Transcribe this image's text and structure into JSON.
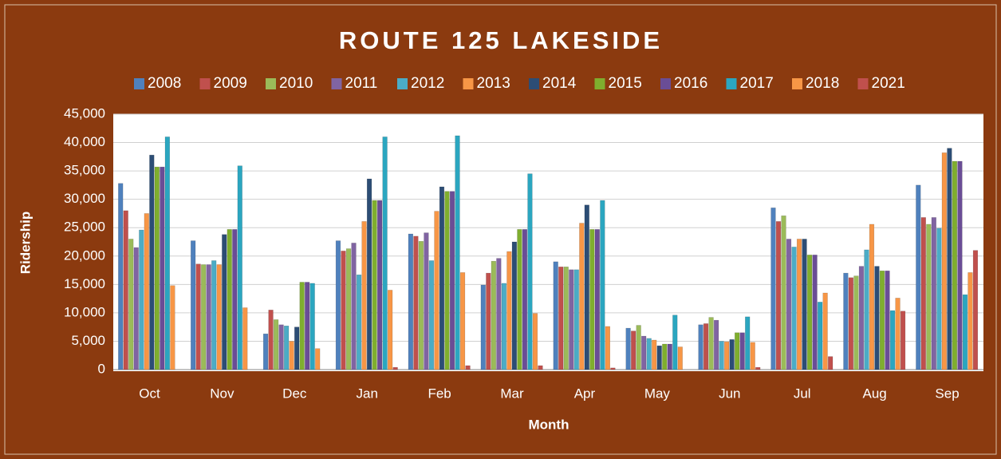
{
  "chart_data": {
    "type": "bar",
    "title": "ROUTE 125 LAKESIDE",
    "x_label": "Month",
    "y_label": "Ridership",
    "categories": [
      "Oct",
      "Nov",
      "Dec",
      "Jan",
      "Feb",
      "Mar",
      "Apr",
      "May",
      "Jun",
      "Jul",
      "Aug",
      "Sep"
    ],
    "series": [
      {
        "name": "2008",
        "color": "#4f81bd",
        "values": [
          32800,
          22700,
          6300,
          22700,
          23900,
          14900,
          19000,
          7300,
          7900,
          28500,
          17000,
          32500
        ]
      },
      {
        "name": "2009",
        "color": "#c0504d",
        "values": [
          28000,
          18600,
          10500,
          20900,
          23500,
          17000,
          18100,
          6800,
          8100,
          26100,
          16200,
          26800
        ]
      },
      {
        "name": "2010",
        "color": "#9bbb59",
        "values": [
          23000,
          18500,
          8800,
          21300,
          22600,
          19100,
          18100,
          7800,
          9200,
          27100,
          16500,
          25600
        ]
      },
      {
        "name": "2011",
        "color": "#8064a2",
        "values": [
          21500,
          18500,
          7900,
          22300,
          24100,
          19600,
          17600,
          5900,
          8700,
          23000,
          18200,
          26800
        ]
      },
      {
        "name": "2012",
        "color": "#4bacc6",
        "values": [
          24600,
          19200,
          7700,
          16700,
          19200,
          15200,
          17600,
          5500,
          5000,
          21600,
          21100,
          24900
        ]
      },
      {
        "name": "2013",
        "color": "#f79646",
        "values": [
          27500,
          18500,
          5000,
          26100,
          27900,
          20800,
          25800,
          5200,
          4900,
          23000,
          25600,
          38200
        ]
      },
      {
        "name": "2014",
        "color": "#2c4d75",
        "values": [
          37800,
          23800,
          7500,
          33600,
          32200,
          22500,
          29000,
          4200,
          5300,
          23000,
          18200,
          39000
        ]
      },
      {
        "name": "2015",
        "color": "#7fae2e",
        "values": [
          35700,
          24700,
          15400,
          29800,
          31400,
          24700,
          24700,
          4500,
          6500,
          20200,
          17400,
          36700
        ]
      },
      {
        "name": "2016",
        "color": "#6a4d96",
        "values": [
          35700,
          24700,
          15400,
          29800,
          31400,
          24700,
          24700,
          4500,
          6500,
          20200,
          17400,
          36700
        ]
      },
      {
        "name": "2017",
        "color": "#2ba6c0",
        "values": [
          41000,
          35900,
          15200,
          41000,
          41200,
          34500,
          29800,
          9600,
          9300,
          11900,
          10400,
          13200
        ]
      },
      {
        "name": "2018",
        "color": "#f79646",
        "values": [
          14800,
          10900,
          3700,
          14000,
          17100,
          9900,
          7600,
          4000,
          4800,
          13500,
          12600,
          17100
        ]
      },
      {
        "name": "2021",
        "color": "#c0504d",
        "values": [
          0,
          0,
          0,
          400,
          700,
          700,
          300,
          0,
          400,
          2300,
          10300,
          21000
        ]
      }
    ],
    "ylim": [
      0,
      45000
    ],
    "yticks": [
      0,
      {
        "value": 5000,
        "label": "5,000"
      },
      {
        "value": 10000,
        "label": "10,000"
      },
      {
        "value": 15000,
        "label": "15,000"
      },
      {
        "value": 20000,
        "label": "20,000"
      },
      {
        "value": 25000,
        "label": "25,000"
      },
      {
        "value": 30000,
        "label": "30,000"
      },
      {
        "value": 35000,
        "label": "35,000"
      },
      {
        "value": 40000,
        "label": "40,000"
      },
      {
        "value": 45000,
        "label": "45,000"
      }
    ],
    "grid": true,
    "legend": "top"
  }
}
